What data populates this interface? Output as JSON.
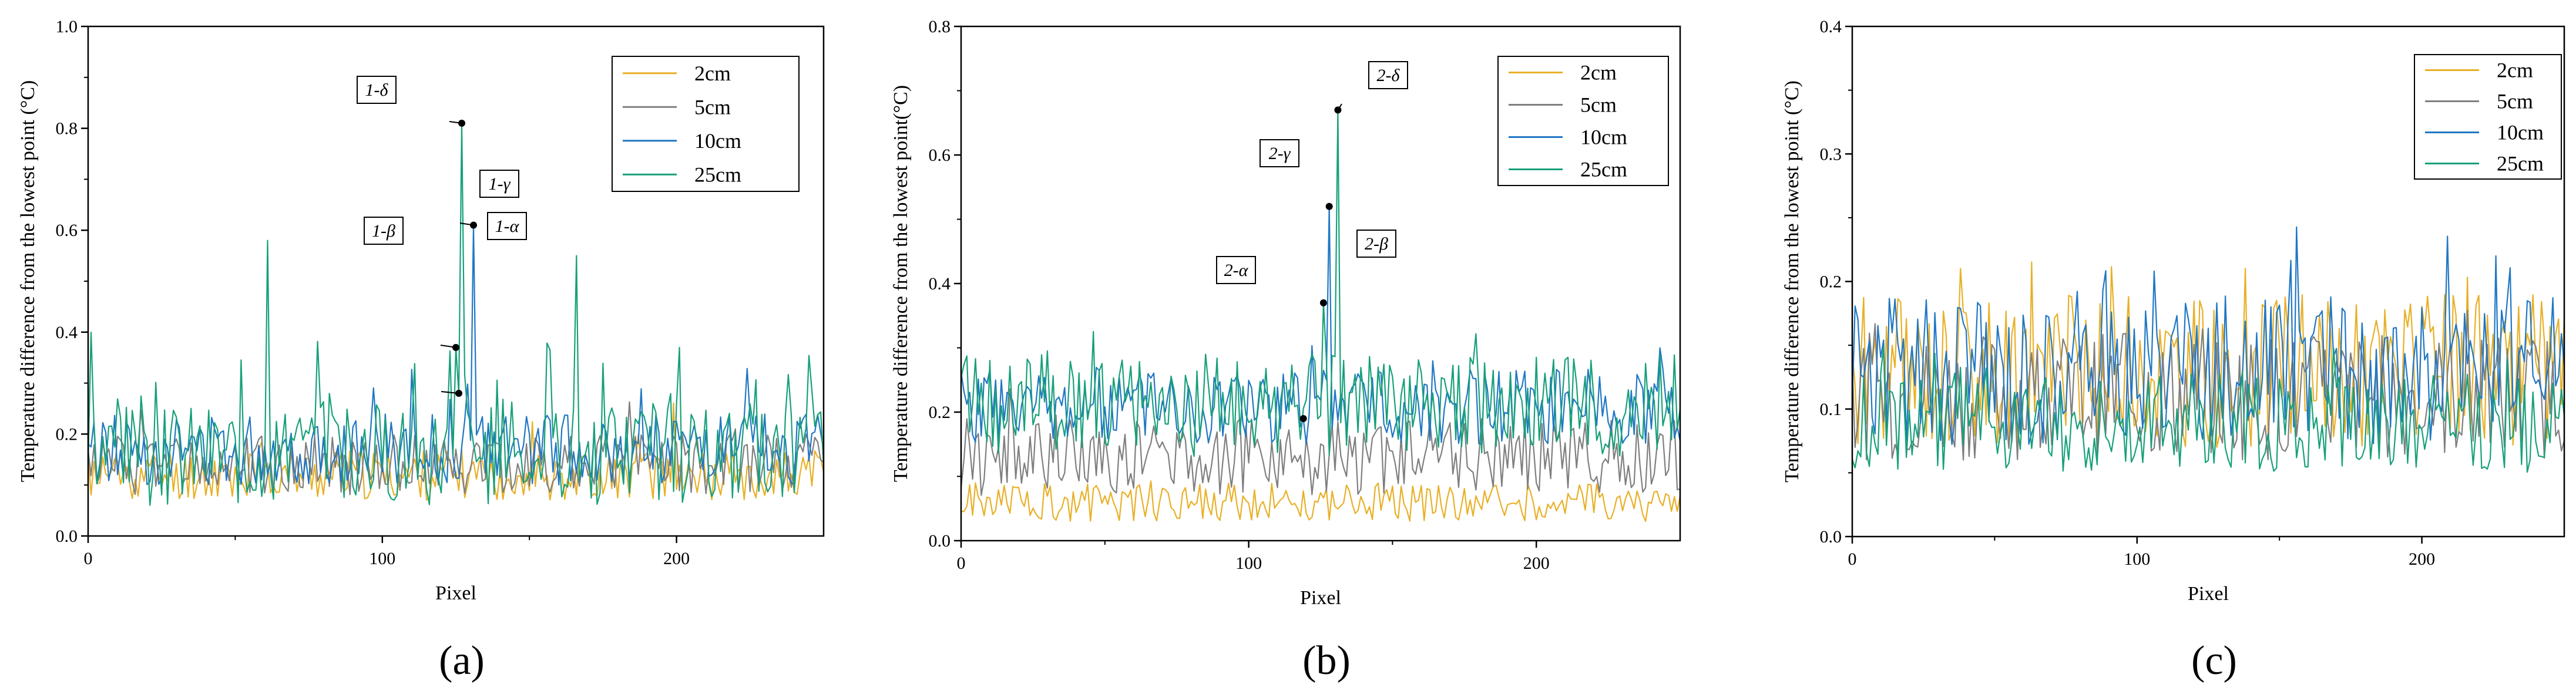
{
  "chart_data": [
    {
      "type": "line",
      "panel_label": "(a)",
      "xlabel": "Pixel",
      "ylabel": "Temperature difference from the lowest point (°C)",
      "xlim": [
        0,
        250
      ],
      "ylim": [
        0,
        1.0
      ],
      "xticks": [
        0,
        100,
        200
      ],
      "xtick_labels": [
        "0",
        "100",
        "200"
      ],
      "yticks": [
        0.0,
        0.2,
        0.4,
        0.6,
        0.8,
        1.0
      ],
      "ytick_labels": [
        "0.0",
        "0.2",
        "0.4",
        "0.6",
        "0.8",
        "1.0"
      ],
      "legend_position": "top-right",
      "grid": false,
      "series": [
        {
          "name": "2cm",
          "color": "#E8B027",
          "mean": 0.12,
          "amp": 0.05,
          "peak_prob": 0.03,
          "peak": 0.1,
          "seed": 11
        },
        {
          "name": "5cm",
          "color": "#7F7F7F",
          "mean": 0.14,
          "amp": 0.06,
          "peak_prob": 0.03,
          "peak": 0.1,
          "seed": 12
        },
        {
          "name": "10cm",
          "color": "#1F77C4",
          "mean": 0.17,
          "amp": 0.07,
          "peak_prob": 0.05,
          "peak": 0.1,
          "seed": 13
        },
        {
          "name": "25cm",
          "color": "#17A07A",
          "mean": 0.16,
          "amp": 0.1,
          "peak_prob": 0.12,
          "peak": 0.2,
          "seed": 14
        }
      ],
      "spikes": [
        {
          "series": "25cm",
          "x": 125,
          "y": 0.37
        },
        {
          "series": "25cm",
          "x": 126,
          "y": 0.28
        },
        {
          "series": "25cm",
          "x": 127,
          "y": 0.81
        },
        {
          "series": "10cm",
          "x": 131,
          "y": 0.61
        },
        {
          "series": "25cm",
          "x": 61,
          "y": 0.58
        },
        {
          "series": "25cm",
          "x": 166,
          "y": 0.55
        }
      ],
      "annotations": [
        {
          "label": "1-δ",
          "x": 127,
          "y": 0.81,
          "dir": "left"
        },
        {
          "label": "1-γ",
          "x": 131,
          "y": 0.61,
          "dir": "upright"
        },
        {
          "label": "1-β",
          "x": 125,
          "y": 0.37,
          "dir": "upleft"
        },
        {
          "label": "1-α",
          "x": 126,
          "y": 0.28,
          "dir": "right"
        }
      ]
    },
    {
      "type": "line",
      "panel_label": "(b)",
      "xlabel": "Pixel",
      "ylabel": "Temperature difference from the lowest point(°C)",
      "xlim": [
        0,
        250
      ],
      "ylim": [
        0,
        0.8
      ],
      "xticks": [
        0,
        100,
        200
      ],
      "xtick_labels": [
        "0",
        "100",
        "200"
      ],
      "yticks": [
        0.0,
        0.2,
        0.4,
        0.6,
        0.8
      ],
      "ytick_labels": [
        "0.0",
        "0.2",
        "0.4",
        "0.6",
        "0.8"
      ],
      "legend_position": "top-right",
      "grid": false,
      "series": [
        {
          "name": "2cm",
          "color": "#E8B027",
          "mean": 0.06,
          "amp": 0.03,
          "peak_prob": 0.02,
          "peak": 0.04,
          "seed": 21
        },
        {
          "name": "5cm",
          "color": "#7F7F7F",
          "mean": 0.13,
          "amp": 0.06,
          "peak_prob": 0.03,
          "peak": 0.08,
          "seed": 22
        },
        {
          "name": "10cm",
          "color": "#1F77C4",
          "mean": 0.21,
          "amp": 0.06,
          "peak_prob": 0.05,
          "peak": 0.08,
          "seed": 23
        },
        {
          "name": "25cm",
          "color": "#17A07A",
          "mean": 0.21,
          "amp": 0.08,
          "peak_prob": 0.08,
          "peak": 0.12,
          "seed": 24
        }
      ],
      "spikes": [
        {
          "series": "10cm",
          "x": 128,
          "y": 0.52
        },
        {
          "series": "25cm",
          "x": 126,
          "y": 0.37
        },
        {
          "series": "25cm",
          "x": 131,
          "y": 0.67
        },
        {
          "series": "10cm",
          "x": 119,
          "y": 0.19
        }
      ],
      "annotations": [
        {
          "label": "2-δ",
          "x": 131,
          "y": 0.67,
          "dir": "upright"
        },
        {
          "label": "2-γ",
          "x": 128,
          "y": 0.52,
          "dir": "upleft"
        },
        {
          "label": "2-β",
          "x": 126,
          "y": 0.37,
          "dir": "upright"
        },
        {
          "label": "2-α",
          "x": 119,
          "y": 0.19,
          "dir": "upleft"
        }
      ]
    },
    {
      "type": "line",
      "panel_label": "(c)",
      "xlabel": "Pixel",
      "ylabel": "Temperature difference from the lowest point (°C)",
      "xlim": [
        0,
        250
      ],
      "ylim": [
        0,
        0.4
      ],
      "xticks": [
        0,
        100,
        200
      ],
      "xtick_labels": [
        "0",
        "100",
        "200"
      ],
      "yticks": [
        0.0,
        0.1,
        0.2,
        0.3,
        0.4
      ],
      "ytick_labels": [
        "0.0",
        "0.1",
        "0.2",
        "0.3",
        "0.4"
      ],
      "legend_position": "top-right",
      "grid": false,
      "series": [
        {
          "name": "2cm",
          "color": "#E8B027",
          "mean": 0.13,
          "amp": 0.06,
          "peak_prob": 0.08,
          "peak": 0.07,
          "seed": 31
        },
        {
          "name": "5cm",
          "color": "#7F7F7F",
          "mean": 0.11,
          "amp": 0.05,
          "peak_prob": 0.05,
          "peak": 0.05,
          "seed": 32
        },
        {
          "name": "10cm",
          "color": "#1F77C4",
          "mean": 0.13,
          "amp": 0.06,
          "peak_prob": 0.07,
          "peak": 0.07,
          "seed": 33
        },
        {
          "name": "25cm",
          "color": "#17A07A",
          "mean": 0.09,
          "amp": 0.04,
          "peak_prob": 0.04,
          "peak": 0.04,
          "seed": 34
        }
      ],
      "spikes": [],
      "annotations": []
    }
  ]
}
